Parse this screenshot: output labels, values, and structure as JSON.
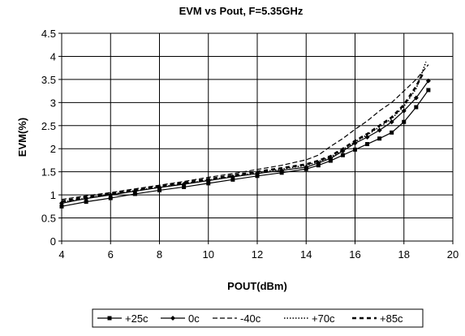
{
  "chart_data": {
    "type": "line",
    "title": "EVM vs Pout, F=5.35GHz",
    "xlabel": "POUT(dBm)",
    "ylabel": "EVM(%)",
    "xlim": [
      4,
      20
    ],
    "ylim": [
      0,
      4.5
    ],
    "x_ticks": [
      4,
      6,
      8,
      10,
      12,
      14,
      16,
      18,
      20
    ],
    "y_ticks": [
      0,
      0.5,
      1,
      1.5,
      2,
      2.5,
      3,
      3.5,
      4,
      4.5
    ],
    "x_tick_labels": [
      "4",
      "6",
      "8",
      "10",
      "12",
      "14",
      "16",
      "18",
      "20"
    ],
    "y_tick_labels": [
      "0",
      "0.5",
      "1",
      "1.5",
      "2",
      "2.5",
      "3",
      "3.5",
      "4",
      "4.5"
    ],
    "grid": {
      "horizontal": true,
      "vertical": true
    },
    "legend_position": "bottom",
    "series": [
      {
        "name": "+25c",
        "style": "solid-square-marker",
        "x": [
          4,
          5,
          6,
          7,
          8,
          9,
          10,
          11,
          12,
          13,
          14,
          14.5,
          15,
          15.5,
          16,
          16.5,
          17,
          17.5,
          18,
          18.5,
          19
        ],
        "y": [
          0.75,
          0.85,
          0.93,
          1.02,
          1.1,
          1.17,
          1.25,
          1.33,
          1.41,
          1.48,
          1.56,
          1.64,
          1.74,
          1.86,
          1.98,
          2.1,
          2.22,
          2.35,
          2.58,
          2.9,
          3.27
        ]
      },
      {
        "name": "0c",
        "style": "solid-diamond-marker",
        "x": [
          4,
          5,
          6,
          7,
          8,
          9,
          10,
          11,
          12,
          13,
          14,
          14.5,
          15,
          15.5,
          16,
          16.5,
          17,
          17.5,
          18,
          18.5,
          19
        ],
        "y": [
          0.82,
          0.92,
          1.0,
          1.08,
          1.16,
          1.23,
          1.31,
          1.39,
          1.46,
          1.53,
          1.6,
          1.69,
          1.79,
          1.95,
          2.12,
          2.25,
          2.4,
          2.58,
          2.82,
          3.1,
          3.47
        ]
      },
      {
        "name": "-40c",
        "style": "dashed",
        "x": [
          4,
          5,
          6,
          7,
          8,
          9,
          10,
          11,
          12,
          13,
          14,
          14.5,
          15,
          15.5,
          16,
          16.5,
          17,
          17.5,
          18,
          18.5,
          19
        ],
        "y": [
          0.9,
          0.98,
          1.05,
          1.13,
          1.21,
          1.29,
          1.38,
          1.46,
          1.55,
          1.64,
          1.76,
          1.86,
          2.05,
          2.22,
          2.42,
          2.6,
          2.82,
          3.0,
          3.25,
          3.5,
          3.82
        ]
      },
      {
        "name": "+70c",
        "style": "dotted",
        "x": [
          4,
          5,
          6,
          7,
          8,
          9,
          10,
          11,
          12,
          13,
          14,
          14.5,
          15,
          15.5,
          16,
          16.5,
          17,
          17.5,
          18,
          18.5,
          18.9
        ],
        "y": [
          0.84,
          0.93,
          1.01,
          1.09,
          1.17,
          1.24,
          1.32,
          1.4,
          1.48,
          1.56,
          1.64,
          1.72,
          1.82,
          1.98,
          2.15,
          2.3,
          2.47,
          2.65,
          2.92,
          3.3,
          3.88
        ]
      },
      {
        "name": "+85c",
        "style": "bold-dashed",
        "x": [
          4,
          5,
          6,
          7,
          8,
          9,
          10,
          11,
          12,
          13,
          14,
          14.5,
          15,
          15.5,
          16,
          16.5,
          17,
          17.5,
          18,
          18.5,
          18.8
        ],
        "y": [
          0.86,
          0.95,
          1.03,
          1.11,
          1.19,
          1.26,
          1.34,
          1.42,
          1.5,
          1.58,
          1.66,
          1.74,
          1.84,
          2.0,
          2.17,
          2.32,
          2.5,
          2.68,
          2.95,
          3.35,
          3.65
        ]
      }
    ]
  }
}
